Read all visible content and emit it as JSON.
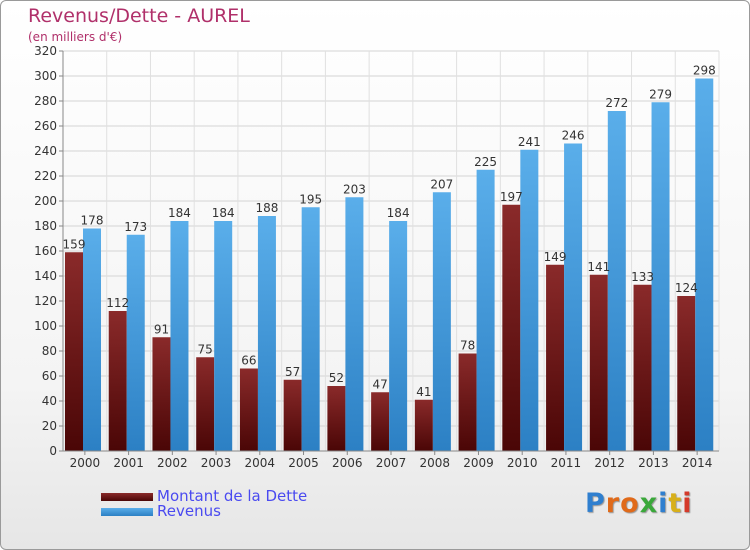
{
  "header": {
    "title": "Revenus/Dette - AUREL",
    "subtitle": "(en milliers d'€)"
  },
  "legend": {
    "debt_label": "Montant de la Dette",
    "revenue_label": "Revenus"
  },
  "logo": {
    "text": "Proxiti",
    "letters": [
      "P",
      "r",
      "o",
      "x",
      "i",
      "t",
      "i"
    ],
    "colors": [
      "#2f7fcf",
      "#e06a1a",
      "#e06a1a",
      "#3aa83a",
      "#2f7fcf",
      "#d8b01a",
      "#d43a2a"
    ]
  },
  "colors": {
    "debt": "#7a1a1a",
    "revenue": "#4aa3e6",
    "title": "#b0306a",
    "legend_text": "#4a4af0",
    "axis_text": "#333333"
  },
  "chart_data": {
    "type": "bar",
    "categories": [
      "2000",
      "2001",
      "2002",
      "2003",
      "2004",
      "2005",
      "2006",
      "2007",
      "2008",
      "2009",
      "2010",
      "2011",
      "2012",
      "2013",
      "2014"
    ],
    "series": [
      {
        "name": "Montant de la Dette",
        "values": [
          159,
          112,
          91,
          75,
          66,
          57,
          52,
          47,
          41,
          78,
          197,
          149,
          141,
          133,
          124
        ]
      },
      {
        "name": "Revenus",
        "values": [
          178,
          173,
          184,
          184,
          188,
          195,
          203,
          184,
          207,
          225,
          241,
          246,
          272,
          279,
          298
        ]
      }
    ],
    "ylim": [
      0,
      320
    ],
    "yticks": [
      0,
      20,
      40,
      60,
      80,
      100,
      120,
      140,
      160,
      180,
      200,
      220,
      240,
      260,
      280,
      300,
      320
    ],
    "grid": true,
    "legend_position": "bottom-left"
  }
}
